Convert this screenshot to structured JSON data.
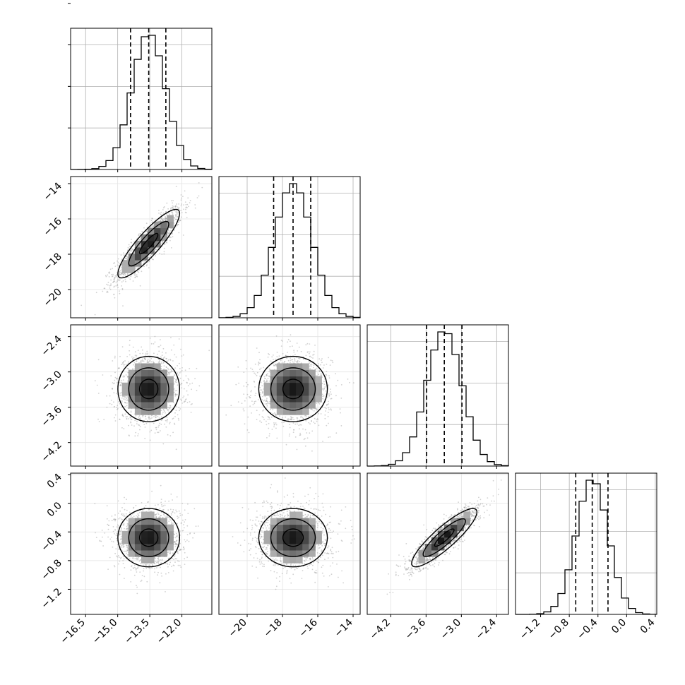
{
  "chart_data": {
    "type": "corner",
    "parameters": [
      {
        "index": 0,
        "range": [
          -17.2,
          -10.6
        ],
        "ticks": [
          -16.5,
          -15.0,
          -13.5,
          -12.0
        ],
        "tick_labels": [
          "−16.5",
          "−15.0",
          "−13.5",
          "−12.0"
        ],
        "mean": -13.55,
        "std": 0.78,
        "quantiles": [
          -14.4,
          -13.55,
          -12.75
        ]
      },
      {
        "index": 1,
        "range": [
          -21.6,
          -13.6
        ],
        "ticks": [
          -20,
          -18,
          -16,
          -14
        ],
        "tick_labels": [
          "−20",
          "−18",
          "−16",
          "−14"
        ],
        "mean": -17.4,
        "std": 1.05,
        "quantiles": [
          -18.5,
          -17.4,
          -16.4
        ]
      },
      {
        "index": 2,
        "range": [
          -4.6,
          -2.2
        ],
        "ticks": [
          -4.2,
          -3.6,
          -3.0,
          -2.4
        ],
        "tick_labels": [
          "−4.2",
          "−3.6",
          "−3.0",
          "−2.4"
        ],
        "mean": -3.29,
        "std": 0.3,
        "quantiles": [
          -3.59,
          -3.29,
          -2.99
        ]
      },
      {
        "index": 3,
        "range": [
          -1.55,
          0.42
        ],
        "ticks": [
          -1.2,
          -0.8,
          -0.4,
          0.0,
          0.4
        ],
        "tick_labels": [
          "−1.2",
          "−0.8",
          "−0.4",
          "0.0",
          "0.4"
        ],
        "mean": -0.48,
        "std": 0.22,
        "quantiles": [
          -0.71,
          -0.48,
          -0.26
        ]
      }
    ],
    "correlations": [
      [
        0,
        1,
        0.88
      ],
      [
        0,
        2,
        0.0
      ],
      [
        0,
        3,
        0.0
      ],
      [
        1,
        2,
        0.0
      ],
      [
        1,
        3,
        0.0
      ],
      [
        2,
        3,
        0.88
      ]
    ],
    "histogram_bins": 20,
    "grid": true,
    "quantile_line_style": "dashed",
    "contour_levels": 3,
    "colors": {
      "line": "#000000",
      "grid": "#b0b0b0",
      "points": "#9a9a9a"
    }
  }
}
